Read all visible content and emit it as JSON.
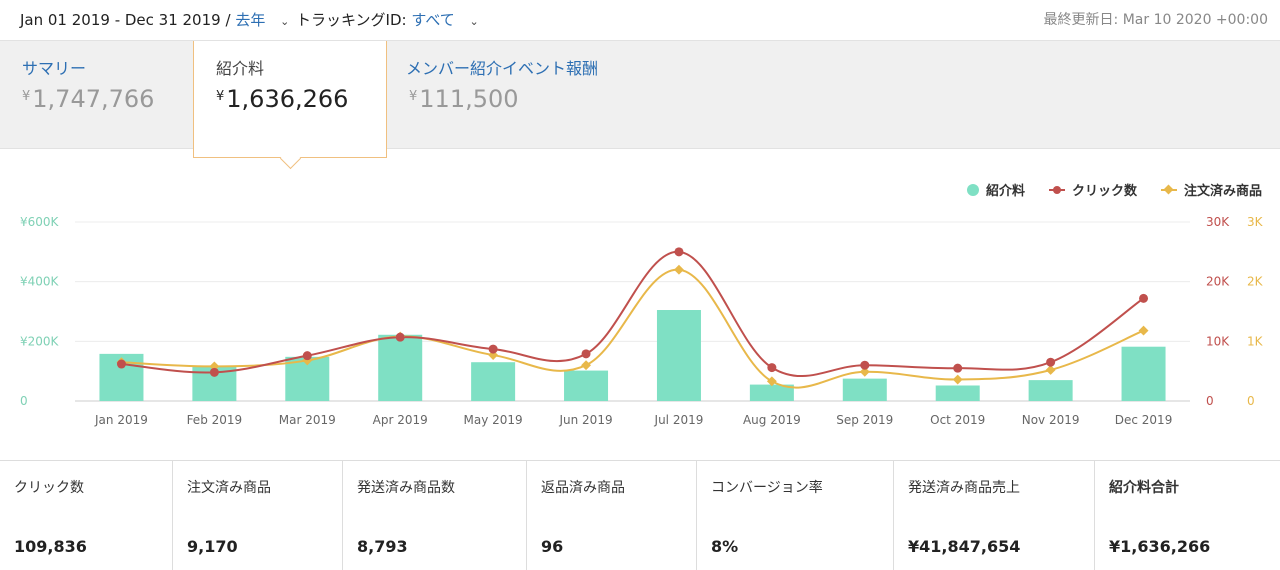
{
  "header": {
    "date_range": "Jan 01 2019 - Dec 31 2019",
    "separator": "/",
    "period_link": "去年",
    "tracking_label": "トラッキングID:",
    "tracking_link": "すべて",
    "last_updated": "最終更新日: Mar 10 2020 +00:00"
  },
  "tabs": [
    {
      "label": "サマリー",
      "currency": "¥",
      "value": "1,747,766",
      "active": false
    },
    {
      "label": "紹介料",
      "currency": "¥",
      "value": "1,636,266",
      "active": true
    },
    {
      "label": "メンバー紹介イベント報酬",
      "currency": "¥",
      "value": "111,500",
      "active": false
    }
  ],
  "chart_data": {
    "type": "bar",
    "categories": [
      "Jan 2019",
      "Feb 2019",
      "Mar 2019",
      "Apr 2019",
      "May 2019",
      "Jun 2019",
      "Jul 2019",
      "Aug 2019",
      "Sep 2019",
      "Oct 2019",
      "Nov 2019",
      "Dec 2019"
    ],
    "series": [
      {
        "name": "紹介料",
        "type": "bar",
        "axis": "left",
        "color": "#7fe0c4",
        "values": [
          158000,
          118000,
          148000,
          222000,
          130000,
          102000,
          305000,
          55000,
          75000,
          52000,
          70000,
          182000
        ]
      },
      {
        "name": "クリック数",
        "type": "line",
        "axis": "right1",
        "color": "#c0504d",
        "values": [
          6200,
          4800,
          7600,
          10700,
          8700,
          7900,
          25000,
          5600,
          6000,
          5500,
          6500,
          17200
        ]
      },
      {
        "name": "注文済み商品",
        "type": "line",
        "axis": "right2",
        "color": "#e8b84a",
        "values": [
          650,
          580,
          680,
          1080,
          770,
          600,
          2200,
          330,
          490,
          360,
          520,
          1180
        ]
      }
    ],
    "left_axis": {
      "ticks": [
        "0",
        "¥200K",
        "¥400K",
        "¥600K"
      ],
      "range": [
        0,
        600000
      ],
      "color": "#7fd1b5"
    },
    "right_axis_1": {
      "ticks": [
        "0",
        "10K",
        "20K",
        "30K"
      ],
      "range": [
        0,
        30000
      ],
      "color": "#c0504d"
    },
    "right_axis_2": {
      "ticks": [
        "0",
        "1K",
        "2K",
        "3K"
      ],
      "range": [
        0,
        3000
      ],
      "color": "#e8b84a"
    },
    "legend_position": "top-right",
    "grid": true
  },
  "stats": [
    {
      "label": "クリック数",
      "value": "109,836"
    },
    {
      "label": "注文済み商品",
      "value": "9,170"
    },
    {
      "label": "発送済み商品数",
      "value": "8,793"
    },
    {
      "label": "返品済み商品",
      "value": "96"
    },
    {
      "label": "コンバージョン率",
      "value": "8%"
    },
    {
      "label": "発送済み商品売上",
      "value": "¥41,847,654"
    },
    {
      "label": "紹介料合計",
      "value": "¥1,636,266"
    }
  ]
}
